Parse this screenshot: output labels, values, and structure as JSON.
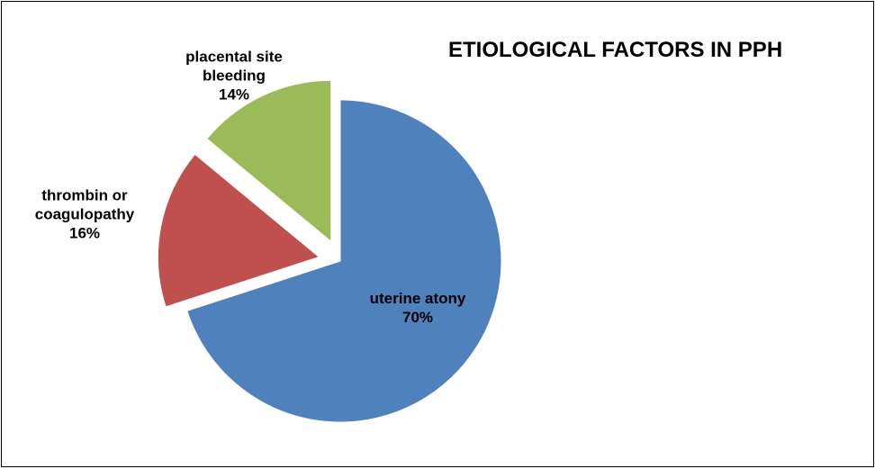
{
  "chart_data": {
    "type": "pie",
    "title": "ETIOLOGICAL FACTORS IN PPH",
    "categories": [
      "uterine atony",
      "thrombin or coagulopathy",
      "placental site bleeding"
    ],
    "values": [
      70,
      16,
      14
    ],
    "value_labels": [
      "70%",
      "16%",
      "14%"
    ],
    "colors": [
      "#4f81bd",
      "#c0504d",
      "#9bbb59"
    ]
  }
}
